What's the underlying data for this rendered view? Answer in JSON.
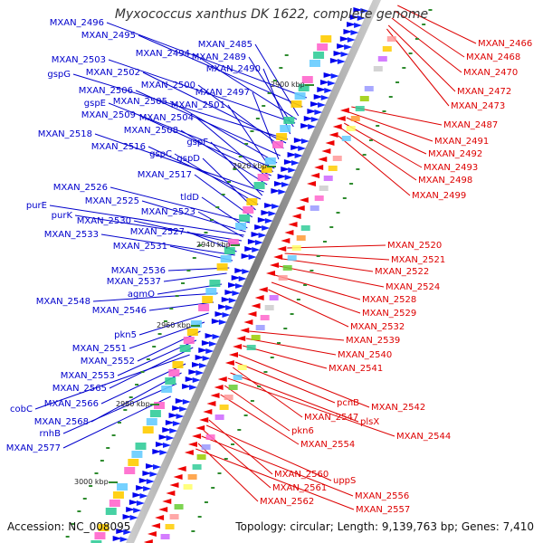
{
  "title": "Myxococcus xanthus DK 1622, complete genome",
  "accession": "Accession: NC_008095",
  "summary": "Topology: circular; Length: 9,139,763 bp; Genes: 7,410",
  "ticks": [
    "2900 kbp",
    "2920 kbp",
    "2940 kbp",
    "2960 kbp",
    "2980 kbp",
    "3000 kbp"
  ],
  "forward_genes": [
    "MXAN_2496",
    "MXAN_2495",
    "MXAN_2485",
    "MXAN_2494",
    "MXAN_2489",
    "MXAN_2503",
    "MXAN_2490",
    "gspG",
    "MXAN_2502",
    "MXAN_2500",
    "MXAN_2506",
    "MXAN_2497",
    "MXAN_2505",
    "gspE",
    "MXAN_2501",
    "MXAN_2509",
    "MXAN_2504",
    "MXAN_2508",
    "MXAN_2518",
    "gspF",
    "MXAN_2516",
    "gspC",
    "gspD",
    "MXAN_2517",
    "MXAN_2526",
    "tldD",
    "MXAN_2525",
    "purE",
    "MXAN_2523",
    "purK",
    "MXAN_2530",
    "MXAN_2527",
    "MXAN_2533",
    "MXAN_2531",
    "MXAN_2536",
    "MXAN_2537",
    "agmO",
    "MXAN_2548",
    "MXAN_2546",
    "pkn5",
    "MXAN_2551",
    "MXAN_2552",
    "MXAN_2553",
    "MXAN_2565",
    "cobC",
    "MXAN_2566",
    "MXAN_2568",
    "rnhB",
    "MXAN_2577"
  ],
  "reverse_genes": [
    "MXAN_2466",
    "MXAN_2468",
    "MXAN_2470",
    "MXAN_2472",
    "MXAN_2473",
    "MXAN_2487",
    "MXAN_2491",
    "MXAN_2492",
    "MXAN_2493",
    "MXAN_2498",
    "MXAN_2499",
    "MXAN_2520",
    "MXAN_2521",
    "MXAN_2522",
    "MXAN_2524",
    "MXAN_2528",
    "MXAN_2529",
    "MXAN_2532",
    "MXAN_2539",
    "MXAN_2540",
    "MXAN_2541",
    "MXAN_2542",
    "pcnB",
    "MXAN_2547",
    "plsX",
    "MXAN_2544",
    "pkn6",
    "MXAN_2554",
    "MXAN_2560",
    "uppS",
    "MXAN_2561",
    "MXAN_2556",
    "MXAN_2562",
    "MXAN_2557"
  ],
  "colors": {
    "forward": "#0000cc",
    "reverse": "#dd0000",
    "backbone": "#8a8a8a",
    "tick": "#2e8b2e"
  }
}
